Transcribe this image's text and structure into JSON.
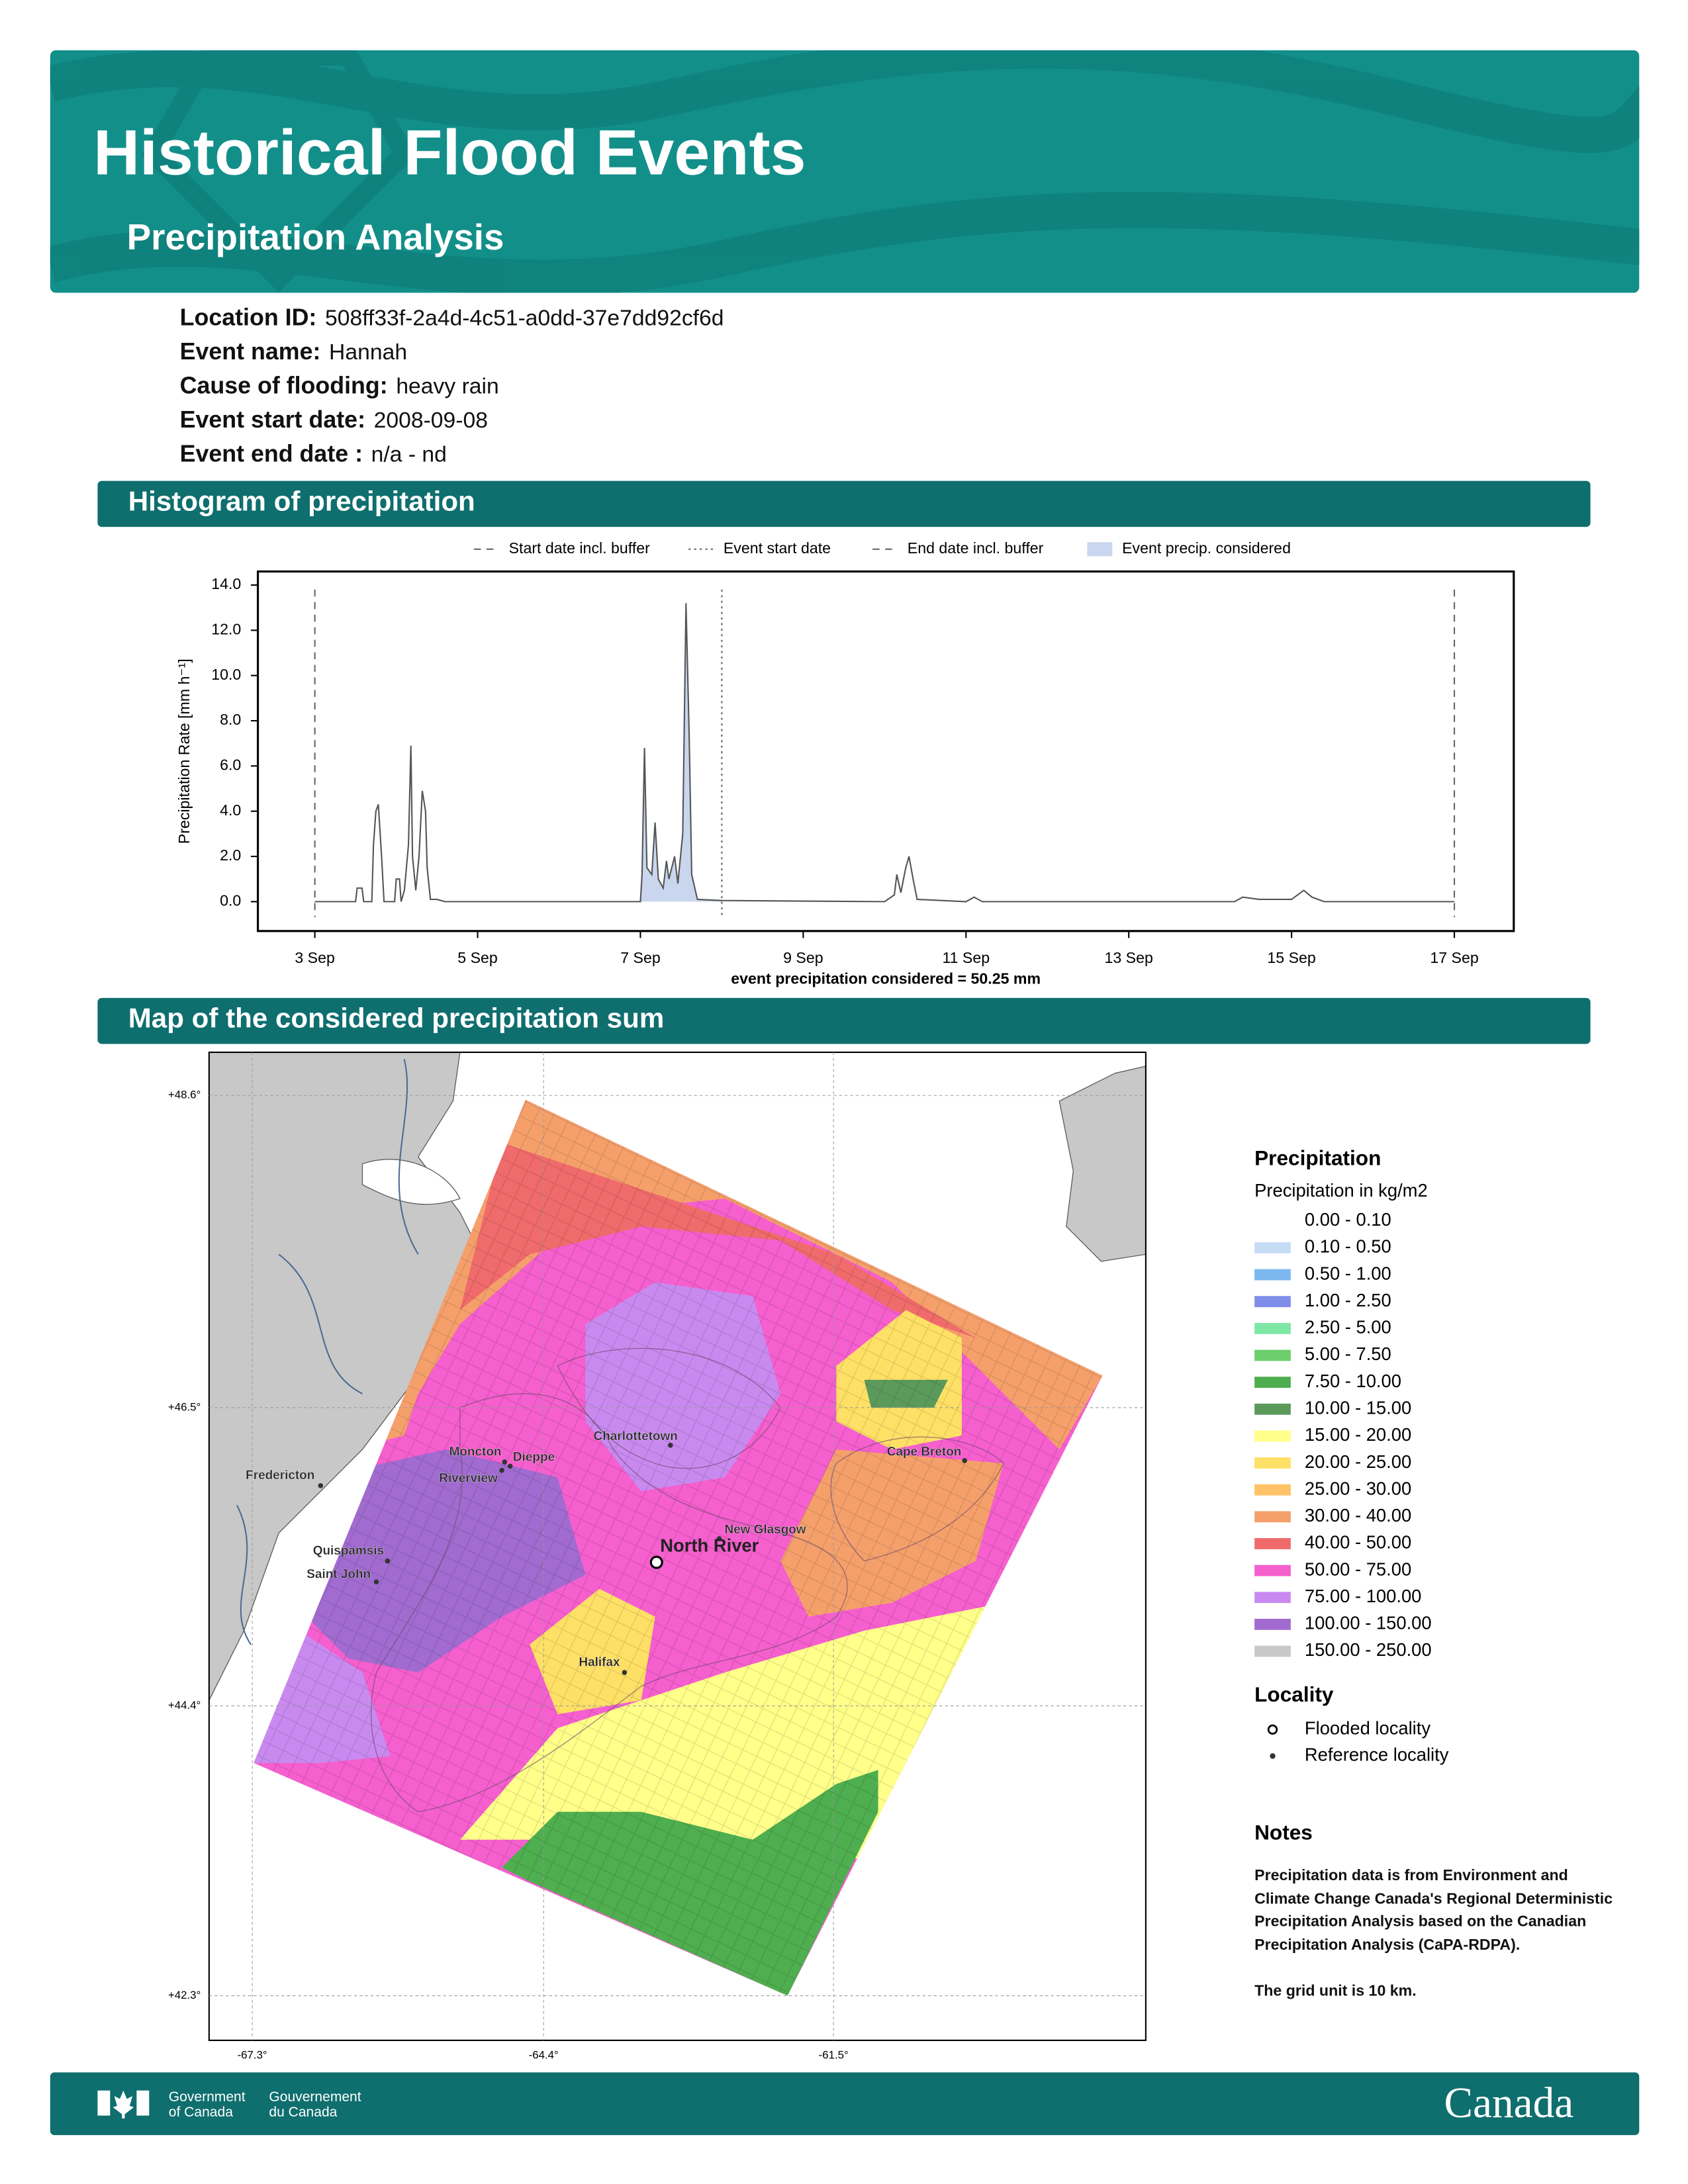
{
  "header": {
    "title": "Historical Flood Events",
    "subtitle": "Precipitation Analysis"
  },
  "details": [
    {
      "label": "Location ID:",
      "value": "508ff33f-2a4d-4c51-a0dd-37e7dd92cf6d"
    },
    {
      "label": "Event name:",
      "value": "Hannah"
    },
    {
      "label": "Cause of flooding:",
      "value": "heavy rain"
    },
    {
      "label": "Event start date:",
      "value": "2008-09-08"
    },
    {
      "label": "Event end date :",
      "value": "n/a - nd"
    }
  ],
  "sections": {
    "histogram": "Histogram of precipitation",
    "map": "Map of the considered precipitation sum"
  },
  "chart_data": {
    "type": "line",
    "y_label": "Precipitation Rate [mm h⁻¹]",
    "x_caption": "event precipitation considered = 50.25 mm",
    "color": "#555555",
    "x": [
      3.0,
      3.5,
      3.52,
      3.58,
      3.6,
      3.7,
      3.72,
      3.75,
      3.78,
      3.82,
      3.85,
      3.98,
      4.0,
      4.04,
      4.06,
      4.1,
      4.15,
      4.18,
      4.2,
      4.24,
      4.28,
      4.32,
      4.36,
      4.38,
      4.4,
      4.42,
      4.5,
      4.6,
      7.0,
      7.02,
      7.05,
      7.08,
      7.14,
      7.18,
      7.22,
      7.28,
      7.32,
      7.35,
      7.42,
      7.46,
      7.52,
      7.56,
      7.6,
      7.63,
      7.7,
      8.0,
      10.0,
      10.12,
      10.15,
      10.2,
      10.26,
      10.3,
      10.35,
      10.4,
      11.0,
      11.1,
      11.2,
      14.3,
      14.4,
      14.6,
      15.0,
      15.15,
      15.25,
      15.4,
      17.0
    ],
    "values": [
      0,
      0,
      0.6,
      0.6,
      0,
      0,
      2.5,
      4.0,
      4.3,
      2.0,
      0,
      0,
      1.0,
      1.0,
      0,
      0.5,
      2.5,
      6.9,
      2.0,
      0.5,
      2.0,
      4.9,
      4.0,
      1.5,
      0.8,
      0.1,
      0.1,
      0,
      0,
      1.2,
      6.8,
      1.5,
      1.2,
      3.5,
      1.0,
      0.6,
      1.8,
      1.0,
      2.0,
      0.8,
      3.0,
      13.2,
      7.2,
      1.2,
      0.1,
      0.05,
      0,
      0.3,
      1.2,
      0.4,
      1.5,
      2.0,
      1.0,
      0.1,
      0,
      0.2,
      0,
      0,
      0.2,
      0.1,
      0.1,
      0.5,
      0.2,
      0,
      0
    ],
    "xlim": [
      2.3,
      17.73
    ],
    "ylim": [
      -1.3,
      14.6
    ],
    "xticks": [
      {
        "value": 3,
        "label": "3 Sep"
      },
      {
        "value": 5,
        "label": "5 Sep"
      },
      {
        "value": 7,
        "label": "7 Sep"
      },
      {
        "value": 9,
        "label": "9 Sep"
      },
      {
        "value": 11,
        "label": "11 Sep"
      },
      {
        "value": 13,
        "label": "13 Sep"
      },
      {
        "value": 15,
        "label": "15 Sep"
      },
      {
        "value": 17,
        "label": "17 Sep"
      }
    ],
    "yticks": [
      {
        "value": 0,
        "label": "0.0"
      },
      {
        "value": 2,
        "label": "2.0"
      },
      {
        "value": 4,
        "label": "4.0"
      },
      {
        "value": 6,
        "label": "6.0"
      },
      {
        "value": 8,
        "label": "8.0"
      },
      {
        "value": 10,
        "label": "10.0"
      },
      {
        "value": 12,
        "label": "12.0"
      },
      {
        "value": 14,
        "label": "14.0"
      }
    ],
    "vlines": [
      {
        "name": "Start date incl. buffer",
        "x": 3,
        "style": "dashed"
      },
      {
        "name": "Event start date",
        "x": 8,
        "style": "dotted"
      },
      {
        "name": "End date incl. buffer",
        "x": 17,
        "style": "dashed"
      }
    ],
    "considered": {
      "name": "Event precip. considered",
      "range": [
        7.0,
        8.0
      ],
      "color": "#c9d6ee"
    }
  },
  "map": {
    "lat_labels": [
      "+48.6°",
      "+46.5°",
      "+44.4°",
      "+42.3°"
    ],
    "lon_labels": [
      "-67.3°",
      "-64.4°",
      "-61.5°"
    ],
    "places": [
      "Moncton",
      "Dieppe",
      "Riverview",
      "Charlottetown",
      "Fredericton",
      "Cape Breton",
      "Quispamsis",
      "Saint John",
      "New Glasgow",
      "Halifax",
      "North River"
    ],
    "legend": {
      "title": "Precipitation",
      "subtitle": "Precipitation in kg/m2",
      "items": [
        {
          "label": "0.00 - 0.10",
          "color": "#ffffff"
        },
        {
          "label": "0.10 - 0.50",
          "color": "#c6dcf5"
        },
        {
          "label": "0.50 - 1.00",
          "color": "#7cb8ef"
        },
        {
          "label": "1.00 - 2.50",
          "color": "#7f8ee8"
        },
        {
          "label": "2.50 - 5.00",
          "color": "#7fe8a6"
        },
        {
          "label": "5.00 - 7.50",
          "color": "#6ccf6c"
        },
        {
          "label": "7.50 - 10.00",
          "color": "#4fae4f"
        },
        {
          "label": "10.00 - 15.00",
          "color": "#5c9a5c"
        },
        {
          "label": "15.00 - 20.00",
          "color": "#ffff8a"
        },
        {
          "label": "20.00 - 25.00",
          "color": "#ffe066"
        },
        {
          "label": "25.00 - 30.00",
          "color": "#ffc266"
        },
        {
          "label": "30.00 - 40.00",
          "color": "#f5a06b"
        },
        {
          "label": "40.00 - 50.00",
          "color": "#f06b6b"
        },
        {
          "label": "50.00 - 75.00",
          "color": "#f55fce"
        },
        {
          "label": "75.00 - 100.00",
          "color": "#c98af0"
        },
        {
          "label": "100.00 - 150.00",
          "color": "#a16bd0"
        },
        {
          "label": "150.00 - 250.00",
          "color": "#c8c8c8"
        }
      ]
    },
    "locality": {
      "title": "Locality",
      "items": [
        "Flooded locality",
        "Reference locality"
      ]
    }
  },
  "notes": {
    "title": "Notes",
    "paragraphs": [
      "Precipitation data is from Environment and Climate Change Canada's Regional Deterministic Precipitation Analysis based on the Canadian Precipitation Analysis (CaPA-RDPA).",
      "The grid unit is 10 km."
    ]
  },
  "footer": {
    "en": [
      "Government",
      "of Canada"
    ],
    "fr": [
      "Gouvernement",
      "du Canada"
    ],
    "wordmark": "Canada"
  }
}
